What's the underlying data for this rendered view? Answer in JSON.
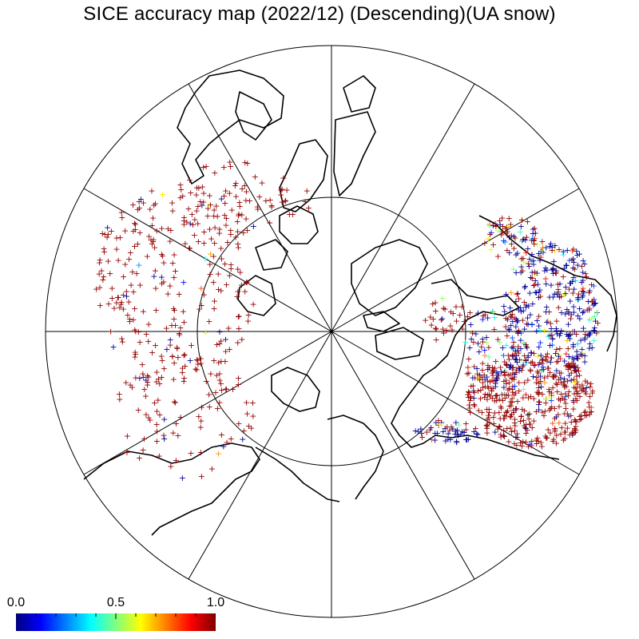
{
  "title": "SICE accuracy map (2022/12) (Descending)(UA snow)",
  "colorbar": {
    "min_label": "0.0",
    "mid_label": "0.5",
    "max_label": "1.0",
    "range": [
      0.0,
      1.0
    ],
    "colormap": "jet",
    "stops": [
      "#00007f",
      "#0000ff",
      "#007fff",
      "#00ffff",
      "#7fff7f",
      "#ffff00",
      "#ff7f00",
      "#ff0000",
      "#7f0000"
    ]
  },
  "map": {
    "projection": "north-polar-stereographic",
    "graticule_color": "#000000",
    "meridian_count": 12,
    "marker_symbol": "+"
  },
  "colors": {
    "high_accuracy": "#8b0000",
    "low_accuracy": "#00008b",
    "coastline": "#000000"
  }
}
